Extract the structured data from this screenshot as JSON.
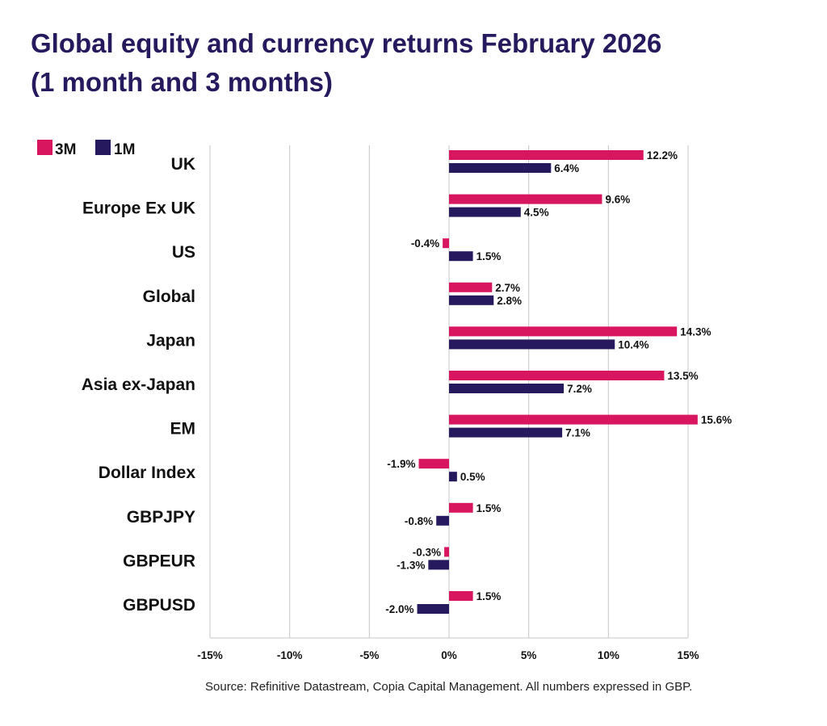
{
  "title_line1": "Global equity and currency returns February 2026",
  "title_line2": "(1 month and 3 months)",
  "source": "Source: Refinitive Datastream, Copia Capital Management. All numbers expressed in GBP.",
  "chart_data": {
    "type": "bar",
    "orientation": "horizontal",
    "title": "Global equity and currency returns February 2026 (1 month and 3 months)",
    "categories": [
      "UK",
      "Europe Ex UK",
      "US",
      "Global",
      "Japan",
      "Asia ex-Japan",
      "EM",
      "Dollar Index",
      "GBPJPY",
      "GBPEUR",
      "GBPUSD"
    ],
    "series": [
      {
        "name": "3M",
        "color": "#d8155f",
        "values": [
          12.2,
          9.6,
          -0.4,
          2.7,
          14.3,
          13.5,
          15.6,
          -1.9,
          1.5,
          -0.3,
          1.5
        ],
        "labels": [
          "12.2%",
          "9.6%",
          "-0.4%",
          "2.7%",
          "14.3%",
          "13.5%",
          "15.6%",
          "-1.9%",
          "1.5%",
          "-0.3%",
          "1.5%"
        ]
      },
      {
        "name": "1M",
        "color": "#26195e",
        "values": [
          6.4,
          4.5,
          1.5,
          2.8,
          10.4,
          7.2,
          7.1,
          0.5,
          -0.8,
          -1.3,
          -2.0
        ],
        "labels": [
          "6.4%",
          "4.5%",
          "1.5%",
          "2.8%",
          "10.4%",
          "7.2%",
          "7.1%",
          "0.5%",
          "-0.8%",
          "-1.3%",
          "-2.0%"
        ]
      }
    ],
    "x_ticks": [
      -15,
      -10,
      -5,
      0,
      5,
      10,
      15
    ],
    "x_tick_labels": [
      "-15%",
      "-10%",
      "-5%",
      "0%",
      "5%",
      "10%",
      "15%"
    ],
    "xlim": [
      -15,
      15
    ],
    "grid": true,
    "legend_position": "top-left"
  }
}
